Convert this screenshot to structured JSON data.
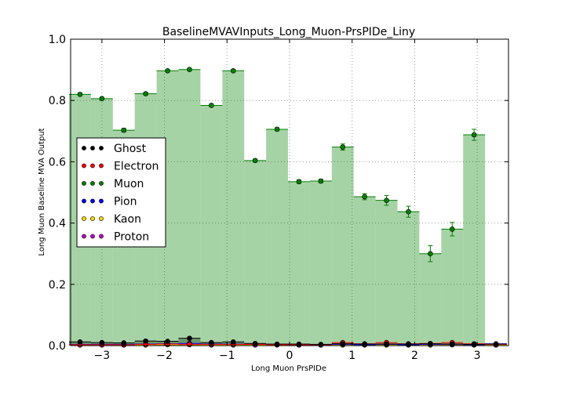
{
  "chart_data": {
    "type": "scatter",
    "title": "BaselineMVAVInputs_Long_Muon-PrsPIDe_Liny",
    "xlabel": "Long Muon PrsPIDe",
    "ylabel": "Long Muon Baseline MVA Output",
    "xlim": [
      -3.5,
      3.5
    ],
    "ylim": [
      0.0,
      1.0
    ],
    "xticks": [
      -3,
      -2,
      -1,
      0,
      1,
      2,
      3
    ],
    "xtick_labels": [
      "−3",
      "−2",
      "−1",
      "0",
      "1",
      "2",
      "3"
    ],
    "yticks": [
      0.0,
      0.2,
      0.4,
      0.6,
      0.8,
      1.0
    ],
    "ytick_labels": [
      "0.0",
      "0.2",
      "0.4",
      "0.6",
      "0.8",
      "1.0"
    ],
    "grid": true,
    "legend_position": "center-left",
    "x": [
      -3.35,
      -3.0,
      -2.65,
      -2.3,
      -1.95,
      -1.6,
      -1.25,
      -0.9,
      -0.55,
      -0.2,
      0.15,
      0.5,
      0.85,
      1.2,
      1.55,
      1.9,
      2.25,
      2.6,
      2.95,
      3.3
    ],
    "series": [
      {
        "name": "Ghost",
        "color": "#000000",
        "values": [
          0.012,
          0.01,
          0.009,
          0.015,
          0.014,
          0.024,
          0.01,
          0.012,
          0.007,
          0.005,
          0.005,
          0.004,
          0.006,
          0.005,
          0.005,
          0.005,
          0.006,
          0.005,
          0.004,
          0.005
        ]
      },
      {
        "name": "Electron",
        "color": "#ff0000",
        "values": [
          0.003,
          0.003,
          0.003,
          0.004,
          0.005,
          0.004,
          0.004,
          0.004,
          0.004,
          0.003,
          0.003,
          0.003,
          0.01,
          0.006,
          0.01,
          0.006,
          0.007,
          0.01,
          0.006,
          0.004
        ]
      },
      {
        "name": "Muon",
        "color": "#008000",
        "values": [
          0.82,
          0.806,
          0.703,
          0.822,
          0.897,
          0.901,
          0.784,
          0.897,
          0.604,
          0.706,
          0.535,
          0.537,
          0.648,
          0.486,
          0.474,
          0.437,
          0.3,
          0.38,
          0.688,
          null
        ],
        "errors": [
          0.004,
          0.004,
          0.006,
          0.004,
          0.004,
          0.004,
          0.004,
          0.004,
          0.005,
          0.005,
          0.006,
          0.006,
          0.01,
          0.01,
          0.016,
          0.018,
          0.026,
          0.022,
          0.018,
          null
        ]
      },
      {
        "name": "Pion",
        "color": "#0000ff",
        "values": [
          0.004,
          0.004,
          0.004,
          0.005,
          0.006,
          0.007,
          0.005,
          0.005,
          0.004,
          0.004,
          0.003,
          0.003,
          0.004,
          0.003,
          0.004,
          0.003,
          0.004,
          0.004,
          0.003,
          0.006
        ]
      },
      {
        "name": "Kaon",
        "color": "#ffd700",
        "values": [
          0.002,
          0.002,
          0.002,
          0.002,
          0.003,
          0.003,
          0.002,
          0.002,
          0.002,
          0.002,
          0.002,
          0.002,
          0.002,
          0.002,
          0.002,
          0.002,
          0.002,
          0.003,
          0.002,
          0.002
        ]
      },
      {
        "name": "Proton",
        "color": "#bf00bf",
        "values": [
          0.003,
          0.003,
          0.002,
          0.003,
          0.004,
          0.004,
          0.003,
          0.004,
          0.003,
          0.003,
          0.002,
          0.002,
          0.004,
          0.004,
          0.005,
          0.005,
          0.004,
          0.003,
          0.003,
          0.002
        ]
      }
    ]
  }
}
